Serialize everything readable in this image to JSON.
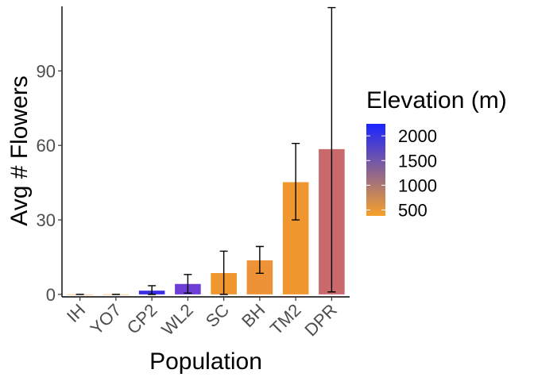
{
  "chart_data": {
    "type": "bar",
    "title": "",
    "xlabel": "Population",
    "ylabel": "Avg # Flowers",
    "ylim": [
      -1,
      116
    ],
    "yticks": [
      0,
      30,
      60,
      90
    ],
    "categories": [
      "IH",
      "YO7",
      "CP2",
      "WL2",
      "SC",
      "BH",
      "TM2",
      "DPR"
    ],
    "values": [
      0,
      0,
      1.5,
      4.2,
      8.6,
      13.7,
      45.2,
      58.5
    ],
    "error_low": [
      0,
      0,
      0,
      0.5,
      0,
      8.5,
      30,
      1
    ],
    "error_high": [
      0,
      0,
      3.5,
      8,
      17.4,
      19.3,
      60.8,
      115.5
    ],
    "elevation": [
      454,
      468,
      2244,
      2020,
      422,
      511,
      379,
      1019
    ],
    "colors": [
      "#f0962e",
      "#f0962e",
      "#3b2ce6",
      "#6d3ed6",
      "#f0962e",
      "#ee9237",
      "#f0962e",
      "#c9696b"
    ],
    "legend": {
      "title": "Elevation (m)",
      "position": "right",
      "labels": [
        "2000",
        "1500",
        "1000",
        "500"
      ],
      "label_values": [
        2000,
        1500,
        1000,
        500
      ],
      "range": [
        379,
        2244
      ],
      "color_low": "#f7a12a",
      "color_high": "#1a24ff"
    },
    "grid": false
  }
}
